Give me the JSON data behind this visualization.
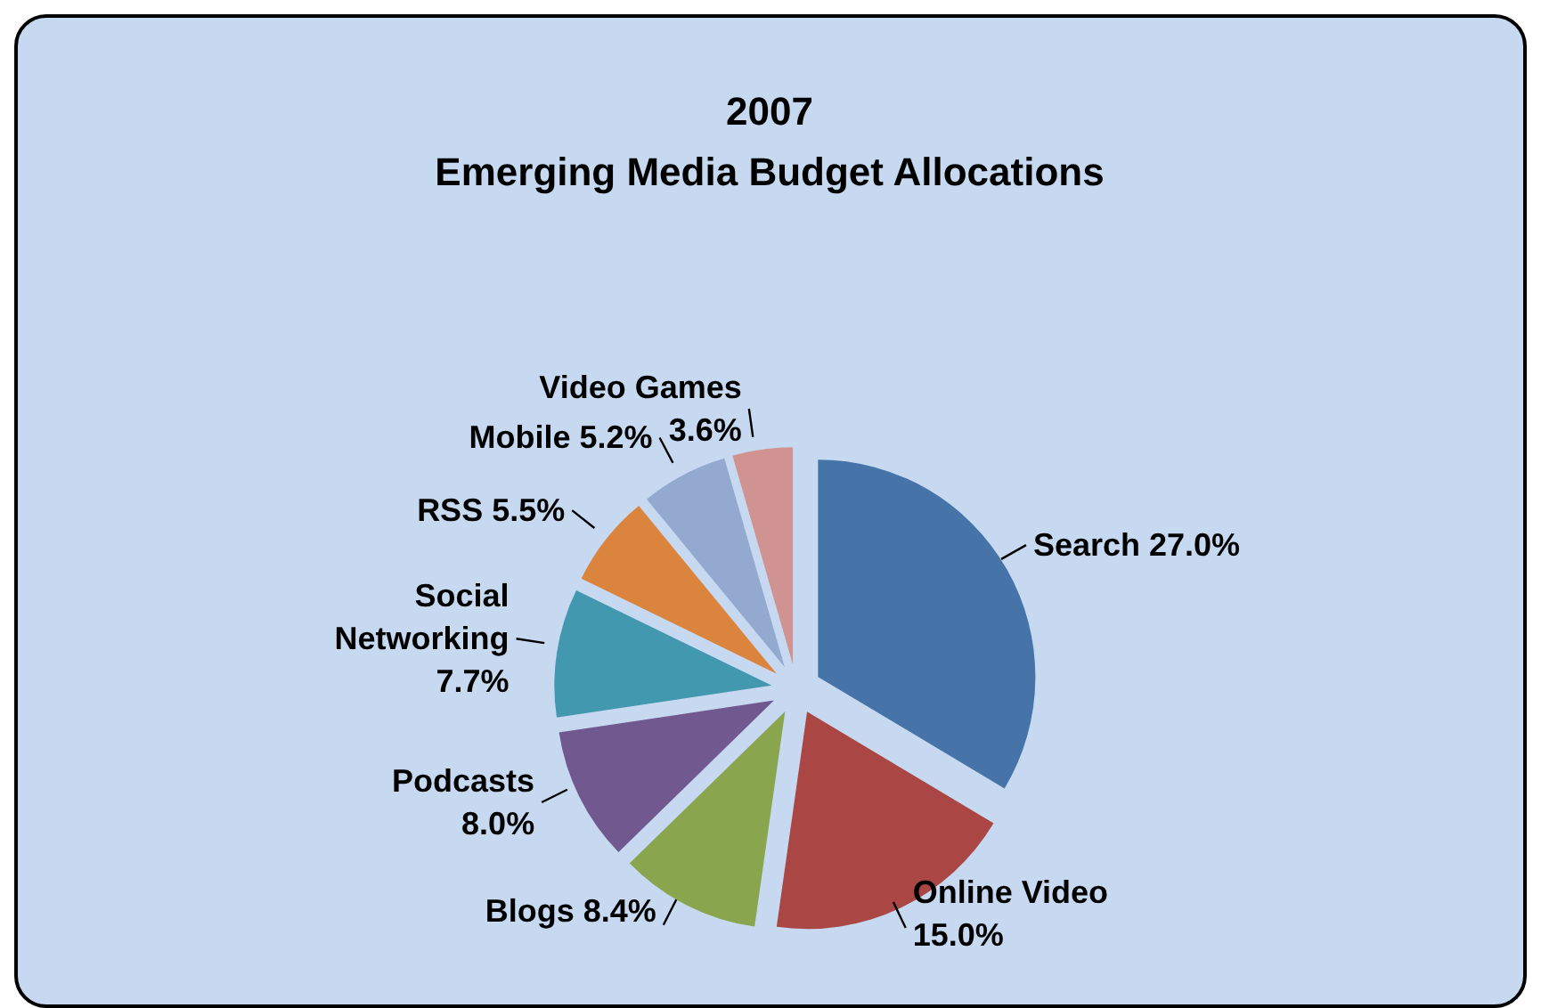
{
  "chart_data": {
    "type": "pie",
    "title": "2007\nEmerging Media Budget Allocations",
    "categories": [
      "Search",
      "Online Video",
      "Blogs",
      "Podcasts",
      "Social Networking",
      "RSS",
      "Mobile",
      "Video Games"
    ],
    "values": [
      27.0,
      15.0,
      8.4,
      8.0,
      7.7,
      5.5,
      5.2,
      3.6
    ],
    "value_labels": [
      "27.0%",
      "15.0%",
      "8.4%",
      "8.0%",
      "7.7%",
      "5.5%",
      "5.2%",
      "3.6%"
    ],
    "colors": [
      "#4673a8",
      "#aa4643",
      "#89a54e",
      "#71588f",
      "#4198af",
      "#db843d",
      "#93a9cf",
      "#d19392"
    ],
    "legend": false
  }
}
